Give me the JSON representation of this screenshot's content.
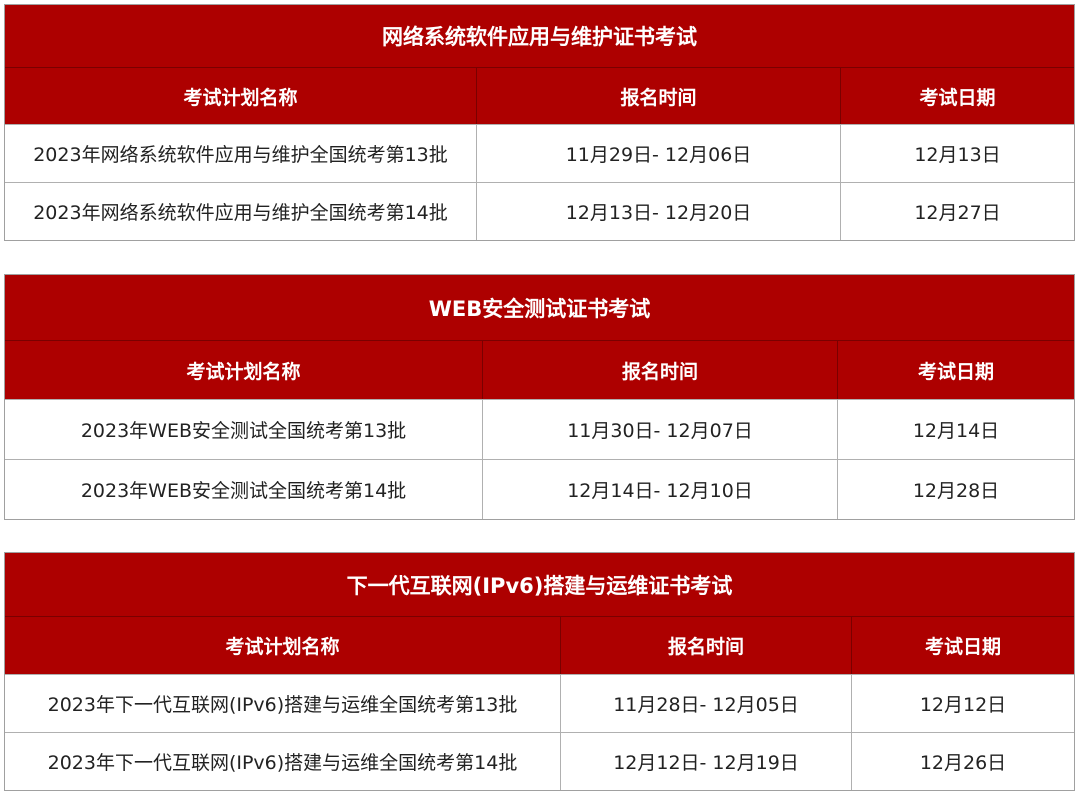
{
  "headers": {
    "name": "考试计划名称",
    "registration": "报名时间",
    "exam_date": "考试日期"
  },
  "accent_color": "#ad0000",
  "tables": [
    {
      "title": "网络系统软件应用与维护证书考试",
      "rows": [
        {
          "name": "2023年网络系统软件应用与维护全国统考第13批",
          "registration": "11月29日- 12月06日",
          "exam_date": "12月13日"
        },
        {
          "name": "2023年网络系统软件应用与维护全国统考第14批",
          "registration": "12月13日- 12月20日",
          "exam_date": "12月27日"
        }
      ]
    },
    {
      "title": "WEB安全测试证书考试",
      "rows": [
        {
          "name": "2023年WEB安全测试全国统考第13批",
          "registration": "11月30日- 12月07日",
          "exam_date": "12月14日"
        },
        {
          "name": "2023年WEB安全测试全国统考第14批",
          "registration": "12月14日- 12月10日",
          "exam_date": "12月28日"
        }
      ]
    },
    {
      "title": "下一代互联网(IPv6)搭建与运维证书考试",
      "rows": [
        {
          "name": "2023年下一代互联网(IPv6)搭建与运维全国统考第13批",
          "registration": "11月28日- 12月05日",
          "exam_date": "12月12日"
        },
        {
          "name": "2023年下一代互联网(IPv6)搭建与运维全国统考第14批",
          "registration": "12月12日- 12月19日",
          "exam_date": "12月26日"
        }
      ]
    }
  ]
}
